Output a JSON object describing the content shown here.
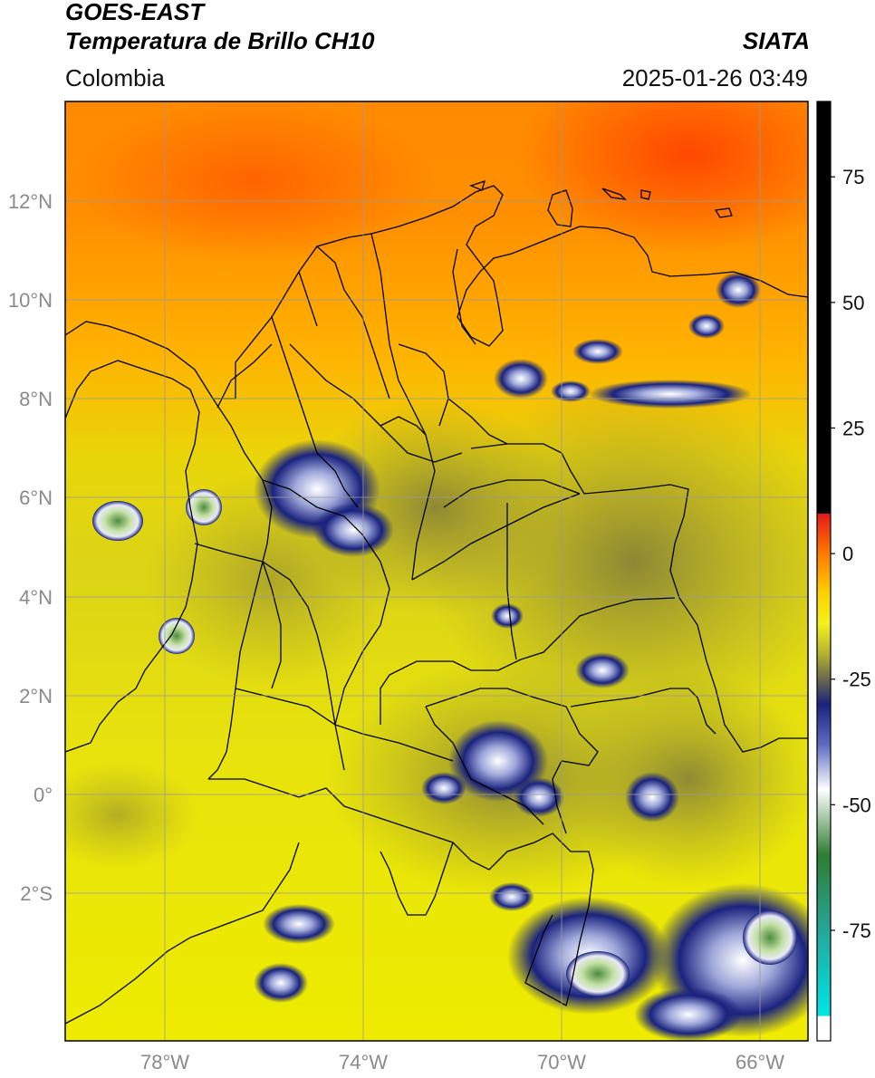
{
  "header": {
    "satellite": "GOES-EAST",
    "product": "Temperatura de Brillo CH10",
    "agency": "SIATA",
    "region": "Colombia",
    "datetime": "2025-01-26 03:49"
  },
  "map": {
    "lon_range": [
      -80,
      -65
    ],
    "lat_range": [
      -5,
      14
    ],
    "lat_ticks": [
      "12°N",
      "10°N",
      "8°N",
      "6°N",
      "4°N",
      "2°N",
      "0°",
      "2°S"
    ],
    "lon_ticks": [
      "78°W",
      "74°W",
      "70°W",
      "66°W"
    ],
    "gridlines": true
  },
  "colorbar": {
    "ticks": [
      "75",
      "50",
      "25",
      "0",
      "-25",
      "-50",
      "-75"
    ],
    "range": [
      -97,
      90
    ],
    "stops": [
      {
        "value": 90,
        "color": "#000000"
      },
      {
        "value": 8,
        "color": "#000000"
      },
      {
        "value": 7.9,
        "color": "#e41a1a"
      },
      {
        "value": 0,
        "color": "#ff7a00"
      },
      {
        "value": -8,
        "color": "#ffd200"
      },
      {
        "value": -14,
        "color": "#f4f020"
      },
      {
        "value": -20,
        "color": "#b5b030"
      },
      {
        "value": -26,
        "color": "#5a5a55"
      },
      {
        "value": -30,
        "color": "#1a237e"
      },
      {
        "value": -38,
        "color": "#5c6bc0"
      },
      {
        "value": -47,
        "color": "#ffffff"
      },
      {
        "value": -60,
        "color": "#2e7d32"
      },
      {
        "value": -75,
        "color": "#26a69a"
      },
      {
        "value": -92,
        "color": "#00e5e5"
      },
      {
        "value": -92.1,
        "color": "#ffffff"
      },
      {
        "value": -97,
        "color": "#ffffff"
      }
    ]
  },
  "colors": {
    "hot": "#ff6a00",
    "warm": "#ffb000",
    "mid": "#f2e600",
    "olive": "#b9b32e",
    "deep": "#1a237e",
    "cloud_top": "#e8eaf6"
  }
}
